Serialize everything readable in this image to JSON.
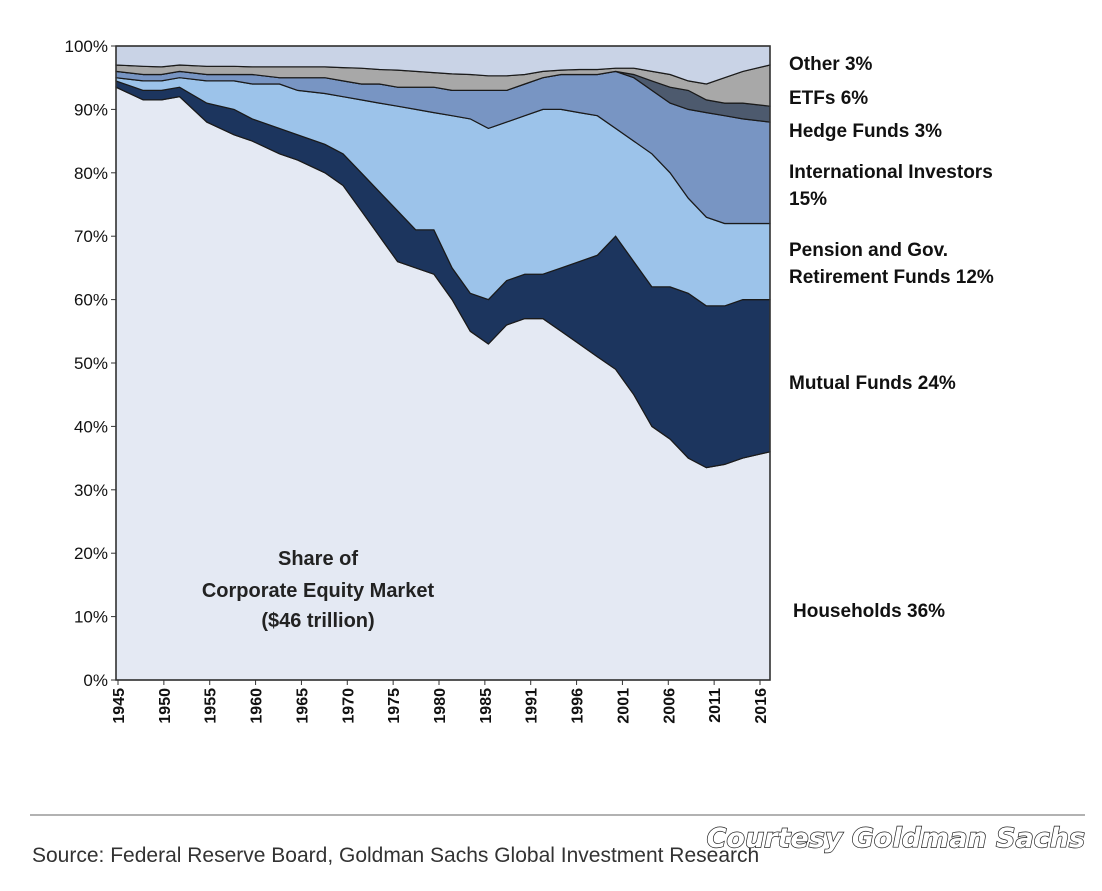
{
  "chart_data": {
    "type": "area",
    "stacked": true,
    "title": "Share of Corporate Equity Market ($46 trillion)",
    "annotation_lines": [
      "Share of",
      "Corporate Equity Market",
      "($46 trillion)"
    ],
    "x_tick_labels": [
      "1945",
      "1950",
      "1955",
      "1960",
      "1965",
      "1970",
      "1975",
      "1980",
      "1985",
      "1991",
      "1996",
      "2001",
      "2006",
      "2011",
      "2016"
    ],
    "xlim": [
      1945,
      2017
    ],
    "y_tick_labels": [
      "0%",
      "10%",
      "20%",
      "30%",
      "40%",
      "50%",
      "60%",
      "70%",
      "80%",
      "90%",
      "100%"
    ],
    "ylim": [
      0,
      100
    ],
    "x": [
      1945,
      1948,
      1950,
      1952,
      1955,
      1958,
      1960,
      1963,
      1965,
      1968,
      1970,
      1972,
      1974,
      1976,
      1978,
      1980,
      1982,
      1984,
      1986,
      1988,
      1990,
      1992,
      1994,
      1996,
      1998,
      2000,
      2002,
      2004,
      2006,
      2008,
      2010,
      2012,
      2014,
      2017
    ],
    "boundaries_note": "cumulative upper boundary (%) of each stacked layer from the bottom",
    "series": [
      {
        "name": "Households",
        "label": "Households 36%",
        "color": "#e4e9f3",
        "upper": [
          93.5,
          91.5,
          91.5,
          92,
          88,
          86,
          85,
          83,
          82,
          80,
          78,
          74,
          70,
          66,
          65,
          64,
          60,
          55,
          53,
          56,
          57,
          57,
          55,
          53,
          51,
          49,
          45,
          40,
          38,
          35,
          33.5,
          34,
          35,
          36
        ]
      },
      {
        "name": "Mutual Funds",
        "label": "Mutual Funds 24%",
        "color": "#1c355e",
        "upper": [
          94.5,
          93,
          93,
          93.5,
          91,
          90,
          88.5,
          87,
          86,
          84.5,
          83,
          80,
          77,
          74,
          71,
          71,
          65,
          61,
          60,
          63,
          64,
          64,
          65,
          66,
          67,
          70,
          66,
          62,
          62,
          61,
          59,
          59,
          60,
          60
        ]
      },
      {
        "name": "Pension and Gov. Retirement Funds",
        "label_lines": [
          "Pension and Gov.",
          "Retirement Funds 12%"
        ],
        "color": "#9cc3ea",
        "upper": [
          95,
          94.5,
          94.5,
          95,
          94.5,
          94.5,
          94,
          94,
          93,
          92.5,
          92,
          91.5,
          91,
          90.5,
          90,
          89.5,
          89,
          88.5,
          87,
          88,
          89,
          90,
          90,
          89.5,
          89,
          87,
          85,
          83,
          80,
          76,
          73,
          72,
          72,
          72
        ]
      },
      {
        "name": "International Investors",
        "label_lines": [
          "International Investors",
          "15%"
        ],
        "color": "#7895c3",
        "upper": [
          96,
          95.5,
          95.5,
          96,
          95.5,
          95.5,
          95.5,
          95,
          95,
          95,
          94.5,
          94,
          94,
          93.5,
          93.5,
          93.5,
          93,
          93,
          93,
          93,
          94,
          95,
          95.5,
          95.5,
          95.5,
          96,
          95,
          93,
          91,
          90,
          89.5,
          89,
          88.5,
          88
        ]
      },
      {
        "name": "Hedge Funds",
        "label": "Hedge Funds 3%",
        "color": "#4d5a6e",
        "upper": [
          96,
          95.5,
          95.5,
          96,
          95.5,
          95.5,
          95.5,
          95,
          95,
          95,
          94.5,
          94,
          94,
          93.5,
          93.5,
          93.5,
          93,
          93,
          93,
          93,
          94,
          95,
          95.5,
          95.5,
          95.5,
          96,
          95.5,
          94.5,
          93.5,
          93,
          91.5,
          91,
          91,
          90.5
        ]
      },
      {
        "name": "ETFs",
        "label": "ETFs 6%",
        "color": "#a8a8a8",
        "upper": [
          97,
          96.8,
          96.7,
          97,
          96.8,
          96.8,
          96.7,
          96.7,
          96.7,
          96.7,
          96.6,
          96.5,
          96.3,
          96.2,
          96,
          95.8,
          95.6,
          95.5,
          95.3,
          95.3,
          95.5,
          96,
          96.2,
          96.3,
          96.3,
          96.5,
          96.5,
          96,
          95.5,
          94.5,
          94,
          95,
          96,
          97
        ]
      },
      {
        "name": "Other",
        "label": "Other 3%",
        "color": "#c9d3e6",
        "upper": [
          100,
          100,
          100,
          100,
          100,
          100,
          100,
          100,
          100,
          100,
          100,
          100,
          100,
          100,
          100,
          100,
          100,
          100,
          100,
          100,
          100,
          100,
          100,
          100,
          100,
          100,
          100,
          100,
          100,
          100,
          100,
          100,
          100,
          100
        ]
      }
    ]
  },
  "footer": {
    "source_text": "Source: Federal Reserve Board, Goldman Sachs Global Investment Research",
    "courtesy_text": "Courtesy Goldman Sachs"
  }
}
